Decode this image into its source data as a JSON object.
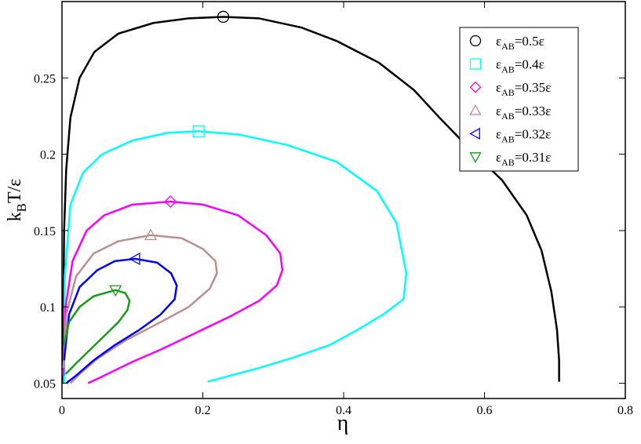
{
  "chart_data": {
    "type": "line",
    "xlabel": "η",
    "ylabel": [
      "k",
      "B",
      "T/ε"
    ],
    "xlim": [
      0,
      0.8
    ],
    "ylim": [
      0.04,
      0.3
    ],
    "xticks": [
      0,
      0.2,
      0.4,
      0.6,
      0.8
    ],
    "yticks": [
      0.05,
      0.1,
      0.15,
      0.2,
      0.25
    ],
    "legend": "upper right",
    "series": [
      {
        "name": [
          "ε",
          "AB",
          "=0.5ε"
        ],
        "color": "#000000",
        "marker": "circle",
        "x": [
          0.002,
          0.002,
          0.003,
          0.006,
          0.012,
          0.025,
          0.046,
          0.08,
          0.13,
          0.18,
          0.229,
          0.28,
          0.34,
          0.391,
          0.45,
          0.5,
          0.536,
          0.58,
          0.625,
          0.66,
          0.681,
          0.695,
          0.703,
          0.706,
          0.706
        ],
        "values": [
          0.05,
          0.1,
          0.15,
          0.19,
          0.224,
          0.25,
          0.267,
          0.279,
          0.286,
          0.289,
          0.29,
          0.289,
          0.283,
          0.274,
          0.26,
          0.242,
          0.224,
          0.203,
          0.183,
          0.16,
          0.137,
          0.11,
          0.085,
          0.065,
          0.051
        ],
        "critical": {
          "x": 0.229,
          "y": 0.29
        }
      },
      {
        "name": [
          "ε",
          "AB",
          "=0.4ε"
        ],
        "color": "#00ffff",
        "marker": "square",
        "x": [
          0.003,
          0.004,
          0.012,
          0.03,
          0.057,
          0.1,
          0.15,
          0.194,
          0.25,
          0.32,
          0.39,
          0.447,
          0.475,
          0.489,
          0.485,
          0.458,
          0.42,
          0.38,
          0.33,
          0.28,
          0.207
        ],
        "values": [
          0.05,
          0.12,
          0.167,
          0.188,
          0.2,
          0.209,
          0.214,
          0.215,
          0.213,
          0.206,
          0.195,
          0.176,
          0.155,
          0.122,
          0.105,
          0.0956,
          0.085,
          0.075,
          0.067,
          0.06,
          0.051
        ],
        "critical": {
          "x": 0.194,
          "y": 0.215
        }
      },
      {
        "name": [
          "ε",
          "AB",
          "=0.35ε"
        ],
        "color": "#ff00ff",
        "marker": "diamond",
        "x": [
          0.002,
          0.005,
          0.015,
          0.035,
          0.06,
          0.1,
          0.154,
          0.2,
          0.25,
          0.29,
          0.31,
          0.313,
          0.305,
          0.28,
          0.24,
          0.19,
          0.14,
          0.1,
          0.06,
          0.037
        ],
        "values": [
          0.055,
          0.1,
          0.13,
          0.15,
          0.16,
          0.167,
          0.169,
          0.167,
          0.16,
          0.147,
          0.135,
          0.124,
          0.114,
          0.104,
          0.094,
          0.083,
          0.072,
          0.064,
          0.055,
          0.05
        ],
        "critical": {
          "x": 0.154,
          "y": 0.169
        }
      },
      {
        "name": [
          "ε",
          "AB",
          "=0.33ε"
        ],
        "color": "#bc8f8f",
        "marker": "triangle-up",
        "x": [
          0.002,
          0.006,
          0.02,
          0.045,
          0.08,
          0.126,
          0.17,
          0.2,
          0.218,
          0.22,
          0.21,
          0.18,
          0.14,
          0.09,
          0.05,
          0.025,
          0.012
        ],
        "values": [
          0.06,
          0.095,
          0.12,
          0.135,
          0.143,
          0.147,
          0.145,
          0.138,
          0.13,
          0.122,
          0.112,
          0.1,
          0.09,
          0.078,
          0.066,
          0.056,
          0.05
        ],
        "critical": {
          "x": 0.126,
          "y": 0.147
        }
      },
      {
        "name": [
          "ε",
          "AB",
          "=0.32ε"
        ],
        "color": "#0000ff",
        "marker": "triangle-left",
        "x": [
          0.003,
          0.01,
          0.025,
          0.05,
          0.075,
          0.104,
          0.135,
          0.155,
          0.163,
          0.16,
          0.14,
          0.11,
          0.075,
          0.045,
          0.02,
          0.006
        ],
        "values": [
          0.065,
          0.095,
          0.113,
          0.124,
          0.13,
          0.1315,
          0.129,
          0.122,
          0.114,
          0.105,
          0.095,
          0.085,
          0.075,
          0.065,
          0.055,
          0.05
        ],
        "critical": {
          "x": 0.104,
          "y": 0.1315
        }
      },
      {
        "name": [
          "ε",
          "AB",
          "=0.31ε"
        ],
        "color": "#1a9a1a",
        "marker": "triangle-down",
        "x": [
          0.003,
          0.01,
          0.025,
          0.045,
          0.076,
          0.09,
          0.096,
          0.093,
          0.08,
          0.06,
          0.04,
          0.02,
          0.005
        ],
        "values": [
          0.075,
          0.09,
          0.1,
          0.107,
          0.111,
          0.109,
          0.104,
          0.098,
          0.09,
          0.081,
          0.072,
          0.063,
          0.056
        ],
        "critical": {
          "x": 0.076,
          "y": 0.111
        }
      }
    ]
  }
}
